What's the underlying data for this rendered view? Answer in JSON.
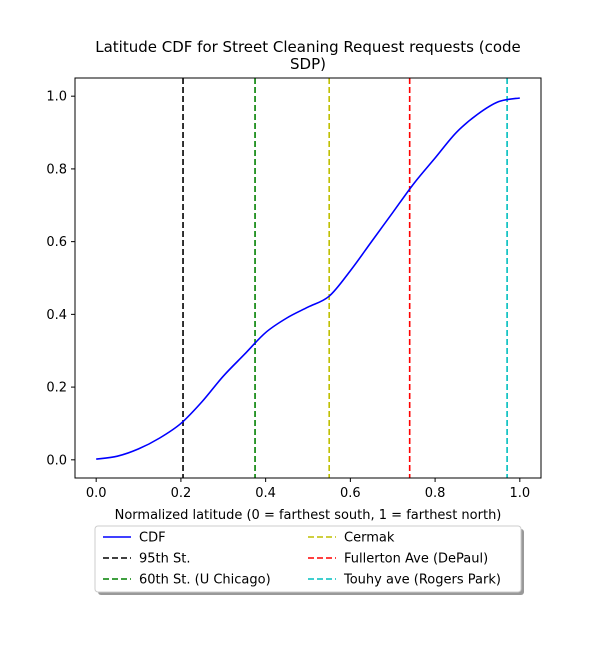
{
  "chart_data": {
    "type": "line",
    "title_lines": [
      "Latitude CDF for Street Cleaning Request  requests (code",
      "SDP)"
    ],
    "xlabel": "Normalized latitude (0 = farthest south, 1 = farthest north)",
    "ylabel": "",
    "xlim": [
      -0.05,
      1.05
    ],
    "ylim": [
      -0.05,
      1.05
    ],
    "xticks": [
      0.0,
      0.2,
      0.4,
      0.6,
      0.8,
      1.0
    ],
    "xtick_labels": [
      "0.0",
      "0.2",
      "0.4",
      "0.6",
      "0.8",
      "1.0"
    ],
    "yticks": [
      0.0,
      0.2,
      0.4,
      0.6,
      0.8,
      1.0
    ],
    "ytick_labels": [
      "0.0",
      "0.2",
      "0.4",
      "0.6",
      "0.8",
      "1.0"
    ],
    "grid": false,
    "legend_placement": "below plot, two columns",
    "series": [
      {
        "name": "CDF",
        "color": "#0000ff",
        "style": "solid",
        "x": [
          0.0,
          0.05,
          0.1,
          0.15,
          0.2,
          0.25,
          0.3,
          0.35,
          0.4,
          0.45,
          0.5,
          0.55,
          0.6,
          0.65,
          0.7,
          0.75,
          0.8,
          0.85,
          0.9,
          0.95,
          1.0
        ],
        "y": [
          0.002,
          0.01,
          0.03,
          0.06,
          0.1,
          0.16,
          0.23,
          0.29,
          0.35,
          0.39,
          0.42,
          0.45,
          0.52,
          0.6,
          0.68,
          0.76,
          0.83,
          0.9,
          0.95,
          0.985,
          0.995
        ]
      }
    ],
    "vlines": [
      {
        "name": "95th St.",
        "x": 0.205,
        "color": "#000000"
      },
      {
        "name": "60th St. (U Chicago)",
        "x": 0.375,
        "color": "#008000"
      },
      {
        "name": "Cermak",
        "x": 0.55,
        "color": "#bfbf00"
      },
      {
        "name": "Fullerton Ave (DePaul)",
        "x": 0.74,
        "color": "#ff0000"
      },
      {
        "name": "Touhy ave (Rogers Park)",
        "x": 0.97,
        "color": "#00bfbf"
      }
    ],
    "legend": {
      "columns": [
        [
          "CDF",
          "95th St.",
          "60th St. (U Chicago)"
        ],
        [
          "Cermak",
          "Fullerton Ave (DePaul)",
          "Touhy ave (Rogers Park)"
        ]
      ]
    }
  }
}
